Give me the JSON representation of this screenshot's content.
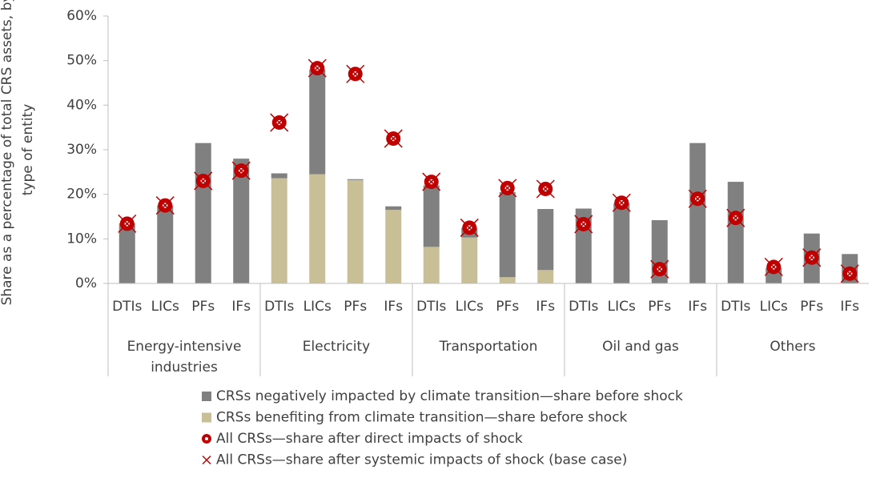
{
  "chart_data": {
    "type": "stacked_bar_with_markers",
    "ylabel": [
      "Share as a percentage of total CRS assets, by",
      "type of entity"
    ],
    "categories": [
      "DTIs",
      "LICs",
      "PFs",
      "IFs",
      "DTIs",
      "LICs",
      "PFs",
      "IFs",
      "DTIs",
      "LICs",
      "PFs",
      "IFs",
      "DTIs",
      "LICs",
      "PFs",
      "IFs",
      "DTIs",
      "LICs",
      "PFs",
      "IFs"
    ],
    "groups": [
      [
        "Energy-intensive",
        "industries"
      ],
      [
        "Electricity"
      ],
      [
        "Transportation"
      ],
      [
        "Oil and gas"
      ],
      [
        "Others"
      ]
    ],
    "ylim": [
      0,
      60
    ],
    "yticks": [
      {
        "value": 0,
        "label": "0%"
      },
      {
        "value": 10,
        "label": "10%"
      },
      {
        "value": 20,
        "label": "20%"
      },
      {
        "value": 30,
        "label": "30%"
      },
      {
        "value": 40,
        "label": "40%"
      },
      {
        "value": 50,
        "label": "50%"
      },
      {
        "value": 60,
        "label": "60%"
      }
    ],
    "series": [
      {
        "name": "CRSs benefiting from climate transition—share before shock",
        "color": "#c9bf97",
        "kind": "bar",
        "values": [
          0,
          0,
          0,
          0,
          23.6,
          24.5,
          23.2,
          16.5,
          8.2,
          10.3,
          1.4,
          3.0,
          0,
          0,
          0,
          0,
          0,
          0,
          0,
          0
        ]
      },
      {
        "name": "CRSs negatively impacted by climate transition—share before shock",
        "color": "#808080",
        "kind": "bar",
        "values": [
          13.5,
          17.5,
          31.5,
          28.0,
          1.1,
          23.5,
          0.2,
          0.8,
          13.8,
          2.2,
          19.1,
          13.7,
          16.8,
          18.0,
          14.2,
          31.5,
          22.8,
          3.5,
          11.2,
          6.6
        ]
      },
      {
        "name": "All CRSs—share after direct impacts of shock",
        "color": "#c00000",
        "kind": "circle",
        "values": [
          13.4,
          17.5,
          23.0,
          25.3,
          36.1,
          48.3,
          47.0,
          32.5,
          22.8,
          12.5,
          21.4,
          21.2,
          13.3,
          18.1,
          3.2,
          19.0,
          14.7,
          3.7,
          5.8,
          2.2
        ]
      },
      {
        "name": "All CRSs—share after systemic impacts of shock (base case)",
        "color": "#c00000",
        "kind": "cross",
        "values": [
          13.4,
          17.5,
          23.0,
          25.3,
          36.1,
          48.3,
          47.0,
          32.5,
          22.8,
          12.5,
          21.4,
          21.2,
          13.3,
          18.1,
          3.2,
          19.0,
          14.7,
          3.7,
          5.8,
          2.2
        ]
      }
    ],
    "legend_order": [
      1,
      0,
      2,
      3
    ]
  }
}
